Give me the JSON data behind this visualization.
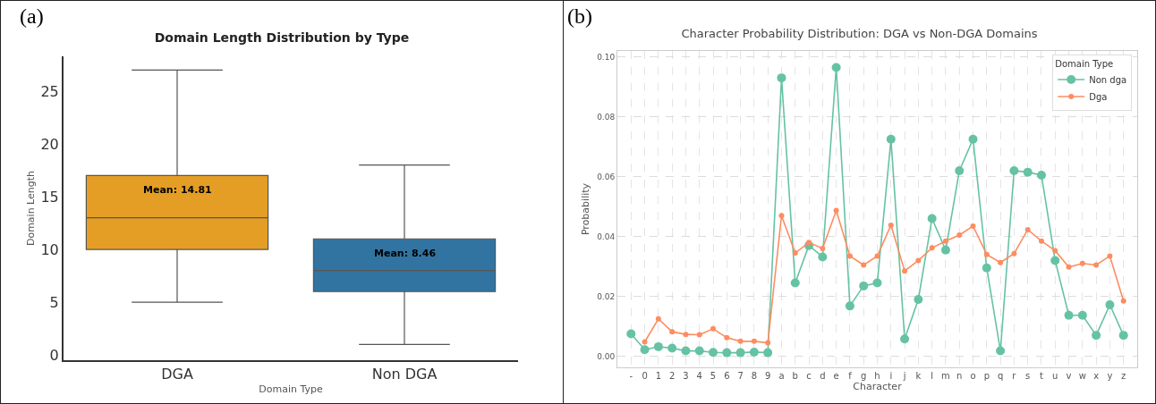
{
  "chart_data": [
    {
      "type": "box",
      "title": "Domain Length Distribution by Type",
      "xlabel": "Domain Type",
      "ylabel": "Domain Length",
      "categories": [
        "DGA",
        "Non DGA"
      ],
      "boxes": [
        {
          "low": 5,
          "q1": 10,
          "median": 13,
          "q3": 17,
          "high": 27
        },
        {
          "low": 1,
          "q1": 6,
          "median": 8,
          "q3": 11,
          "high": 18
        }
      ],
      "colors": [
        "#e49e25",
        "#3274a1"
      ],
      "ylim": [
        -0.5,
        28.3
      ],
      "yticks": [
        0,
        5,
        10,
        15,
        20,
        25
      ],
      "grid": false,
      "legend": false,
      "annotations": [
        "(a)",
        "Mean: 14.81",
        "Mean: 8.46"
      ]
    },
    {
      "type": "line",
      "title": "Character Probability Distribution: DGA vs Non-DGA Domains",
      "xlabel": "Character",
      "ylabel": "Probability",
      "legend_title": "Domain Type",
      "categories": [
        "-",
        "0",
        "1",
        "2",
        "3",
        "4",
        "5",
        "6",
        "7",
        "8",
        "9",
        "a",
        "b",
        "c",
        "d",
        "e",
        "f",
        "g",
        "h",
        "i",
        "j",
        "k",
        "l",
        "m",
        "n",
        "o",
        "p",
        "q",
        "r",
        "s",
        "t",
        "u",
        "v",
        "w",
        "x",
        "y",
        "z"
      ],
      "series": [
        {
          "name": "Non dga",
          "color": "#66c2a5",
          "values": [
            0.0075,
            0.0022,
            0.0032,
            0.0027,
            0.0018,
            0.0018,
            0.0013,
            0.0012,
            0.0012,
            0.0014,
            0.0012,
            0.093,
            0.0245,
            0.037,
            0.0332,
            0.0965,
            0.0168,
            0.0235,
            0.0245,
            0.0725,
            0.0058,
            0.019,
            0.046,
            0.0355,
            0.062,
            0.0725,
            0.0295,
            0.0018,
            0.062,
            0.0615,
            0.0605,
            0.032,
            0.0137,
            0.0137,
            0.007,
            0.0172,
            0.007
          ]
        },
        {
          "name": "Dga",
          "color": "#fc8d62",
          "values": [
            null,
            0.0048,
            0.0125,
            0.0082,
            0.0073,
            0.0072,
            0.0092,
            0.0062,
            0.005,
            0.005,
            0.0045,
            0.047,
            0.0345,
            0.038,
            0.036,
            0.0487,
            0.0335,
            0.0305,
            0.0335,
            0.0438,
            0.0285,
            0.032,
            0.0362,
            0.0385,
            0.0405,
            0.0435,
            0.034,
            0.0313,
            0.0343,
            0.0423,
            0.0385,
            0.0353,
            0.0298,
            0.031,
            0.0305,
            0.0335,
            0.0185
          ]
        }
      ],
      "ylim": [
        -0.0037,
        0.102
      ],
      "yticks": [
        {
          "value": 0,
          "label": "0.00"
        },
        {
          "value": 0.02,
          "label": "0.02"
        },
        {
          "value": 0.04,
          "label": "0.04"
        },
        {
          "value": 0.06,
          "label": "0.06"
        },
        {
          "value": 0.08,
          "label": "0.08"
        },
        {
          "value": 0.1,
          "label": "0.10"
        }
      ],
      "grid": true,
      "legend": "top right",
      "marker": "circle",
      "line_style": "solid",
      "annotations": [
        "(b)"
      ]
    }
  ]
}
